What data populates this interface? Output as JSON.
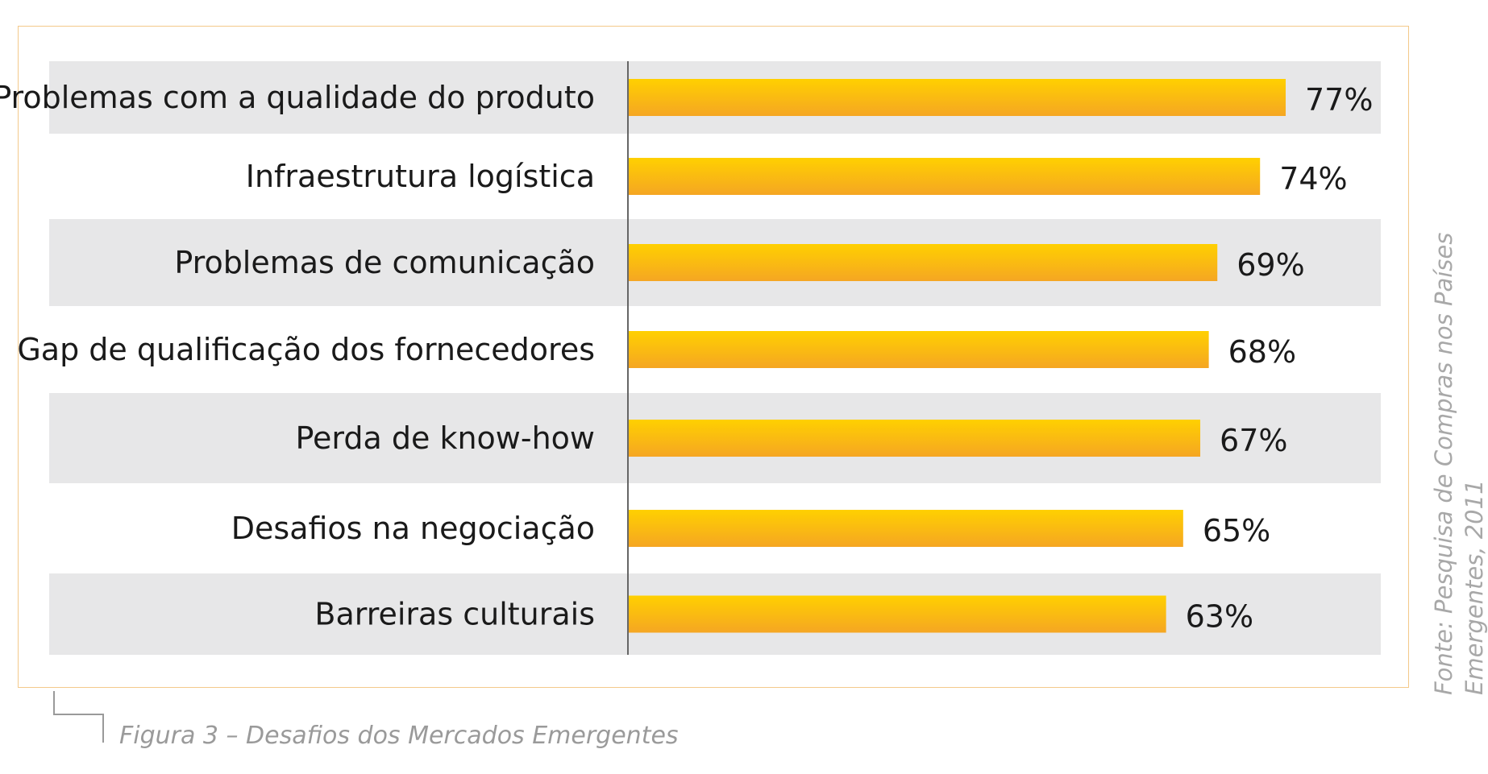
{
  "chart_data": {
    "type": "bar",
    "orientation": "horizontal",
    "categories": [
      "Problemas com a qualidade do produto",
      "Infraestrutura logística",
      "Problemas de comunicação",
      "Gap de qualificação dos fornecedores",
      "Perda de know-how",
      "Desafios na negociação",
      "Barreiras culturais"
    ],
    "values": [
      77,
      74,
      69,
      68,
      67,
      65,
      63
    ],
    "value_labels": [
      "77%",
      "74%",
      "69%",
      "68%",
      "67%",
      "65%",
      "63%"
    ],
    "xlim": [
      0,
      90
    ],
    "colors": {
      "bar_top": "#ffd000",
      "bar_bottom": "#f5a623",
      "band": "#e7e7e8",
      "axis": "#666666",
      "frame": "#f4c98a"
    }
  },
  "caption": "Figura 3 – Desafios dos Mercados Emergentes",
  "source": {
    "line1": "Fonte: Pesquisa de Compras nos Países",
    "line2": "Emergentes, 2011"
  }
}
